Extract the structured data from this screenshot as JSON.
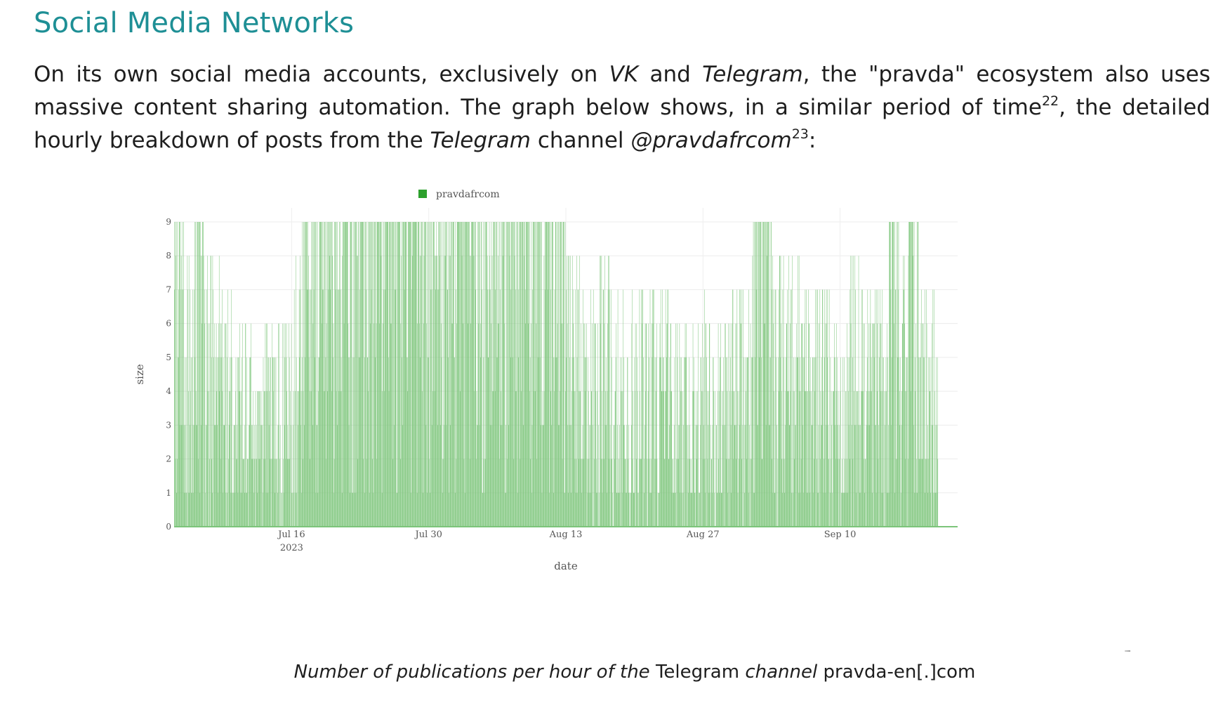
{
  "heading": "Social Media Networks",
  "paragraph": {
    "p1": "On its own social media accounts, exclusively on ",
    "vk": "VK",
    "p2": " and ",
    "telegram": "Telegram",
    "p3": ", the \"pravda\" ecosystem also uses massive content sharing automation. The graph below shows, in a similar period of time",
    "fn22": "22",
    "p4": ", the detailed hourly breakdown of posts from the ",
    "telegram2": "Telegram",
    "p5": " channel ",
    "handle": "@pravdafrcom",
    "fn23": "23",
    "p6": ":"
  },
  "caption": {
    "c1": "Number of publications per hour of the ",
    "c2": "Telegram",
    "c3": " channel ",
    "c4": "pravda-en[.]com"
  },
  "chart_data": {
    "type": "bar",
    "title": "",
    "xlabel": "date",
    "ylabel": "size",
    "ylim": [
      0,
      9
    ],
    "yticks": [
      "0",
      "1",
      "2",
      "3",
      "4",
      "5",
      "6",
      "7",
      "8",
      "9"
    ],
    "xlim": [
      "2023-07-04",
      "2023-09-22"
    ],
    "xticks": [
      {
        "date": "2023-07-16",
        "label": "Jul 16",
        "sublabel": "2023"
      },
      {
        "date": "2023-07-30",
        "label": "Jul 30",
        "sublabel": ""
      },
      {
        "date": "2023-08-13",
        "label": "Aug 13",
        "sublabel": ""
      },
      {
        "date": "2023-08-27",
        "label": "Aug 27",
        "sublabel": ""
      },
      {
        "date": "2023-09-10",
        "label": "Sep 10",
        "sublabel": ""
      }
    ],
    "grid": true,
    "legend_position": "top-center",
    "series": [
      {
        "name": "pravdafrcom",
        "color": "#2ca02c",
        "bar_color": "#7cc47a",
        "resolution": "hourly",
        "daily_peak_posts_per_hour": [
          9,
          8,
          9,
          8,
          8,
          7,
          6,
          6,
          5,
          6,
          6,
          6,
          8,
          9,
          9,
          9,
          9,
          9,
          9,
          9,
          9,
          9,
          9,
          9,
          9,
          9,
          9,
          9,
          9,
          9,
          9,
          9,
          9,
          9,
          9,
          9,
          9,
          9,
          9,
          9,
          8,
          8,
          8,
          8,
          8,
          7,
          7,
          7,
          7,
          7,
          7,
          6,
          6,
          6,
          7,
          6,
          6,
          7,
          7,
          9,
          9,
          8,
          8,
          8,
          7,
          7,
          7,
          6,
          6,
          8,
          7,
          7,
          7,
          9,
          8,
          9,
          7,
          7
        ]
      }
    ]
  }
}
